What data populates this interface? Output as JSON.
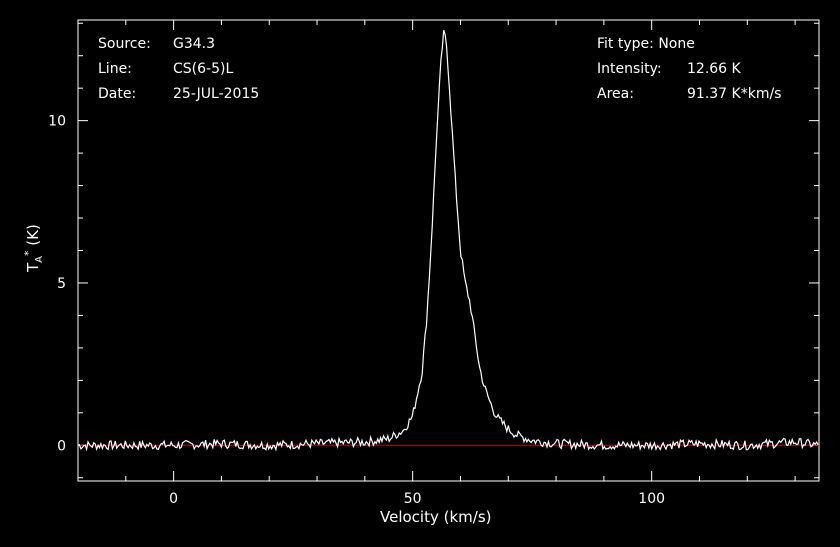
{
  "header": {
    "source_label": "Source:",
    "source_value": "G34.3",
    "line_label": "Line:",
    "line_value": "CS(6-5)L",
    "date_label": "Date:",
    "date_value": "25-JUL-2015",
    "fit_label": "Fit type:",
    "fit_value": "None",
    "intensity_label": "Intensity:",
    "intensity_value": "12.66 K",
    "area_label": "Area:",
    "area_value": "91.37 K*km/s"
  },
  "colors": {
    "background": "#000000",
    "spectrum": "#ffffff",
    "baseline": "#d10000",
    "axes": "#ffffff"
  },
  "chart_data": {
    "type": "line",
    "xlabel": "Velocity (km/s)",
    "ylabel_main": "T",
    "ylabel_sub": "A",
    "ylabel_sup": "*",
    "ylabel_unit": "(K)",
    "xlim": [
      -20,
      135
    ],
    "ylim": [
      -1.1,
      13.1
    ],
    "xticks": [
      0,
      50,
      100
    ],
    "yticks": [
      0,
      5,
      10
    ],
    "grid": false,
    "series": [
      {
        "x": [
          -20,
          -10,
          0,
          10,
          20,
          30,
          40,
          45,
          48,
          50,
          52,
          53,
          54,
          55,
          56,
          56.5,
          57,
          57.5,
          58,
          59,
          60,
          61,
          62,
          63,
          64,
          65,
          66,
          67,
          68,
          70,
          72,
          75,
          80,
          90,
          100,
          110,
          120,
          130,
          135
        ],
        "values": [
          0,
          0,
          0,
          0.05,
          0,
          0.05,
          0.1,
          0.2,
          0.45,
          0.9,
          2.3,
          4.0,
          6.5,
          9.5,
          12.0,
          12.66,
          12.5,
          11.5,
          10.3,
          8.0,
          6.0,
          5.0,
          4.4,
          3.4,
          2.4,
          1.8,
          1.4,
          1.05,
          0.8,
          0.5,
          0.3,
          0.15,
          0.05,
          0,
          0,
          0.05,
          0,
          0.1,
          0
        ]
      }
    ],
    "baseline": 0
  }
}
